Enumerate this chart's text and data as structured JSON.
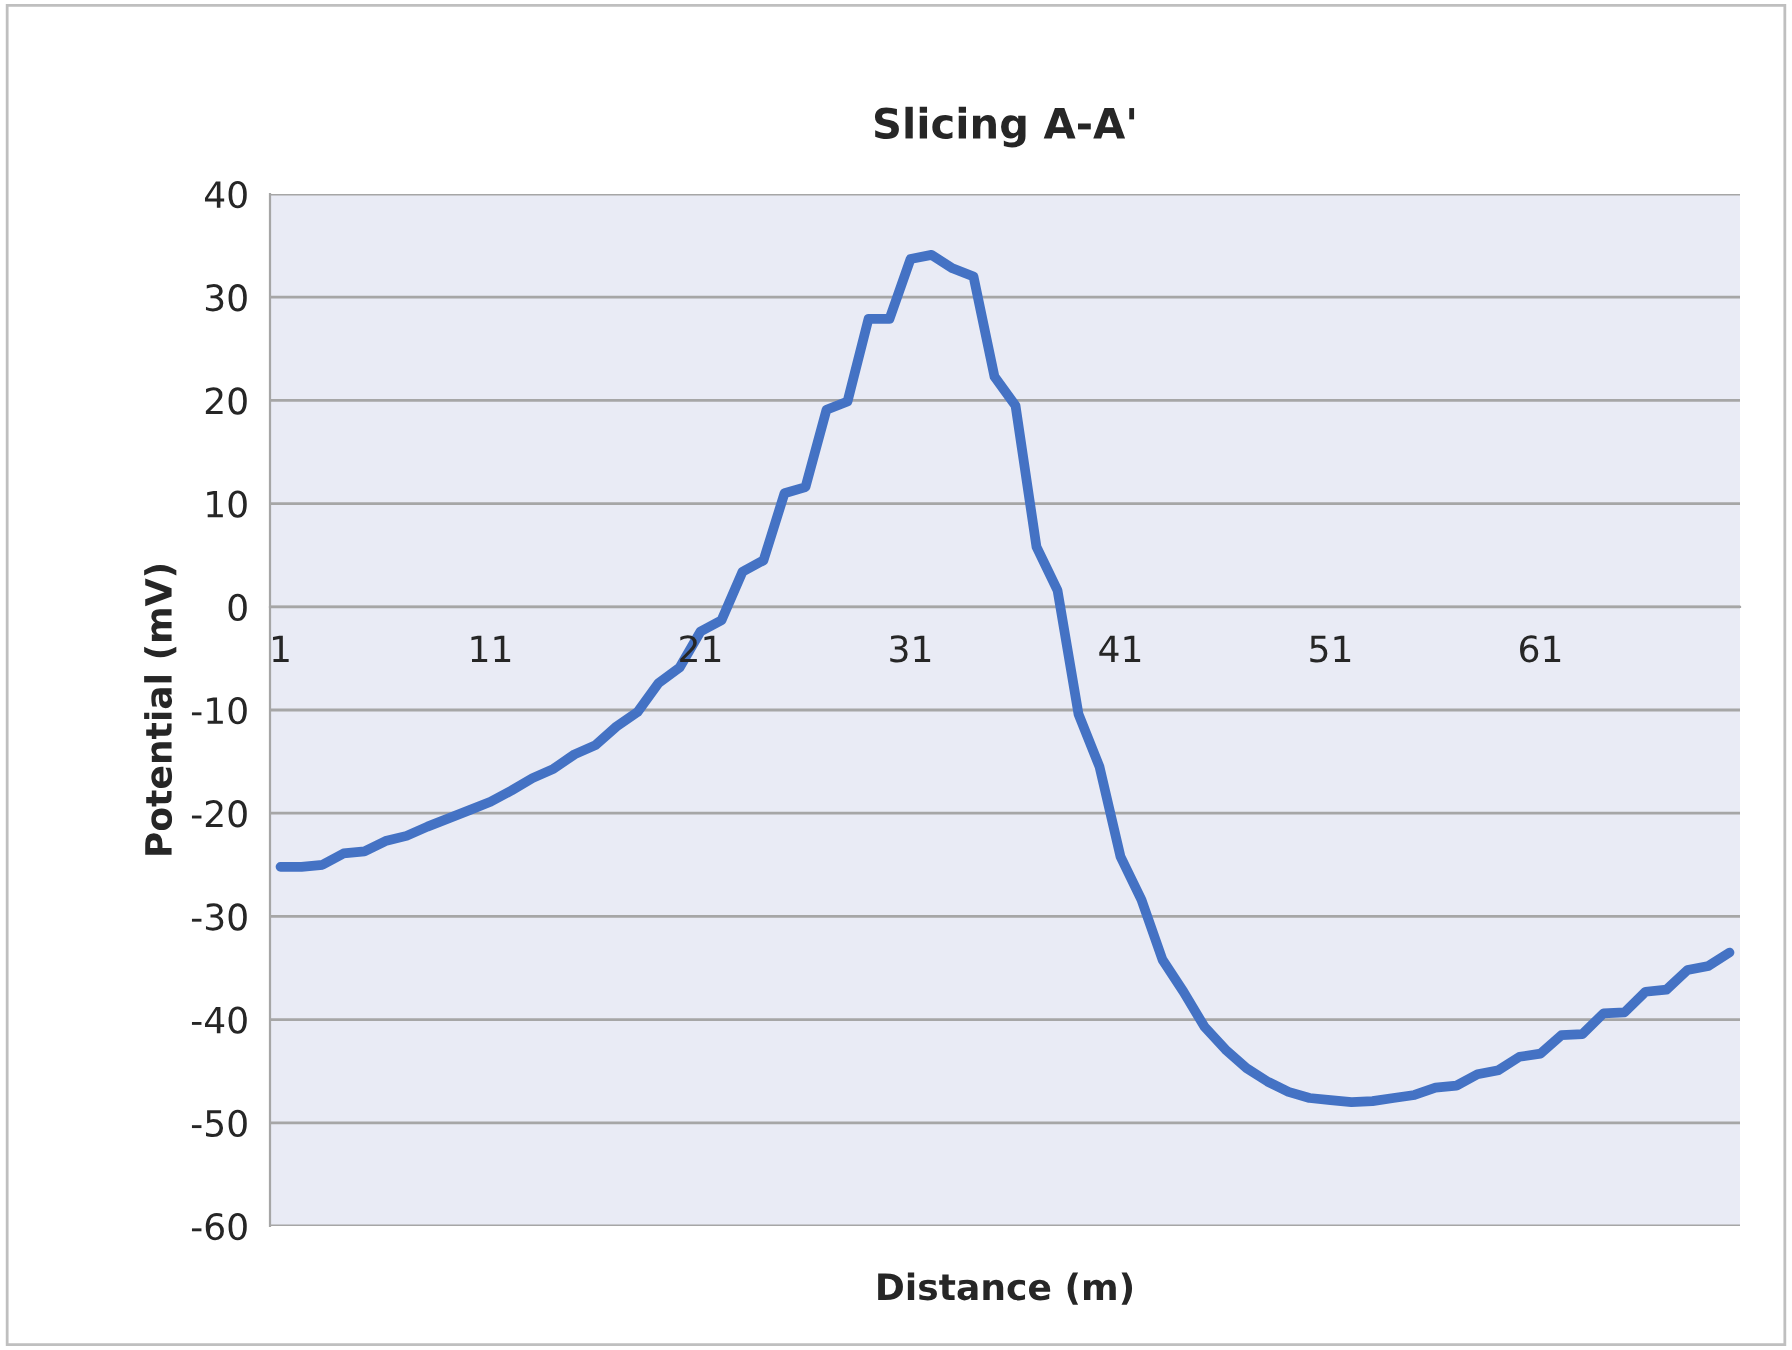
{
  "chart_data": {
    "type": "line",
    "title": "Slicing A-A'",
    "xlabel": "Distance (m)",
    "ylabel": "Potential (mV)",
    "categories": [
      "1",
      null,
      null,
      null,
      null,
      null,
      null,
      null,
      null,
      null,
      "11",
      null,
      null,
      null,
      null,
      null,
      null,
      null,
      null,
      null,
      "21",
      null,
      null,
      null,
      null,
      null,
      null,
      null,
      null,
      null,
      "31",
      null,
      null,
      null,
      null,
      null,
      null,
      null,
      null,
      null,
      "41",
      null,
      null,
      null,
      null,
      null,
      null,
      null,
      null,
      null,
      "51",
      null,
      null,
      null,
      null,
      null,
      null,
      null,
      null,
      null,
      "61",
      null,
      null,
      null,
      null,
      null,
      null,
      null,
      null,
      null
    ],
    "series": [
      {
        "color": "#4472c4",
        "values": [
          -25.2,
          -25.2,
          -25.0,
          -23.9,
          -23.7,
          -22.7,
          -22.2,
          -21.3,
          -20.5,
          -19.7,
          -18.9,
          -17.8,
          -16.6,
          -15.7,
          -14.3,
          -13.4,
          -11.6,
          -10.2,
          -7.4,
          -5.9,
          -2.4,
          -1.3,
          3.4,
          4.5,
          11.0,
          11.6,
          19.1,
          19.9,
          27.9,
          27.9,
          33.7,
          34.1,
          32.8,
          32.0,
          22.3,
          19.5,
          5.8,
          1.6,
          -10.4,
          -15.5,
          -24.2,
          -28.4,
          -34.2,
          -37.3,
          -40.7,
          -42.9,
          -44.7,
          -46.0,
          -47.0,
          -47.6,
          -47.8,
          -48.0,
          -47.9,
          -47.6,
          -47.3,
          -46.6,
          -46.4,
          -45.3,
          -44.9,
          -43.6,
          -43.3,
          -41.5,
          -41.4,
          -39.4,
          -39.3,
          -37.3,
          -37.1,
          -35.2,
          -34.8,
          -33.5
        ]
      }
    ],
    "ylim": [
      -60,
      40
    ],
    "yticks": [
      -60,
      -50,
      -40,
      -30,
      -20,
      -10,
      0,
      10,
      20,
      30,
      40
    ],
    "grid": "y",
    "line_style": "solid",
    "marker": "none"
  }
}
